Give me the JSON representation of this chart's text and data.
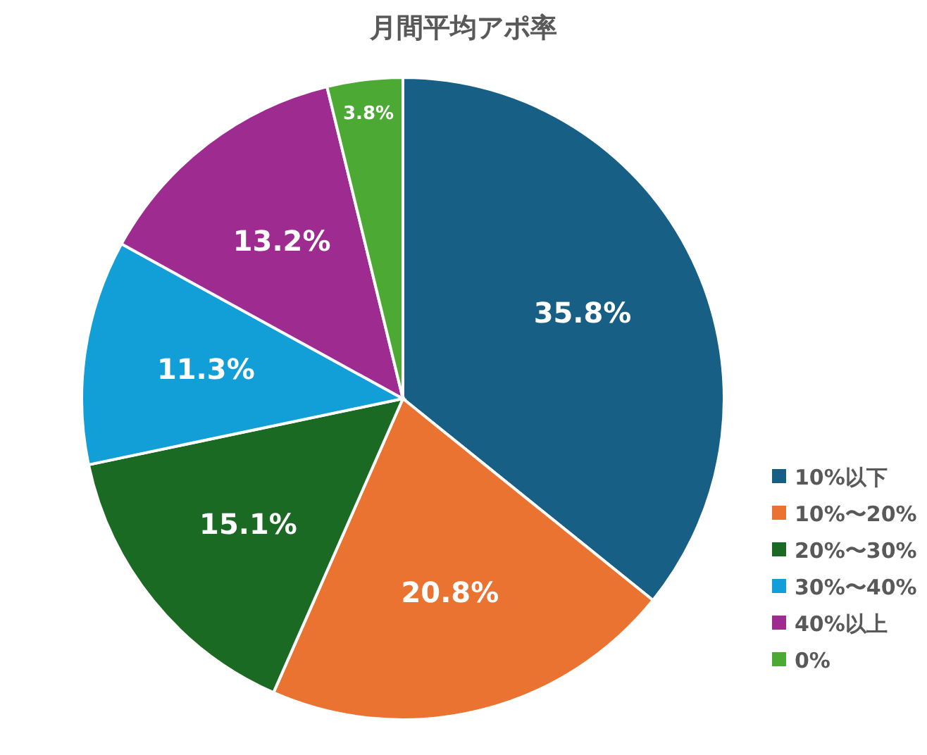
{
  "chart_data": {
    "type": "pie",
    "title": "月間平均アポ率",
    "categories": [
      "10%以下",
      "10%〜20%",
      "20%〜30%",
      "30%〜40%",
      "40%以上",
      "0%"
    ],
    "values": [
      35.8,
      20.8,
      15.1,
      11.3,
      13.2,
      3.8
    ],
    "colors": [
      "#175f84",
      "#ea7332",
      "#1b6a24",
      "#129fd8",
      "#9e2b90",
      "#4caa34"
    ],
    "value_labels": [
      "35.8%",
      "20.8%",
      "15.1%",
      "11.3%",
      "13.2%",
      "3.8%"
    ],
    "legend": "bottom right"
  }
}
